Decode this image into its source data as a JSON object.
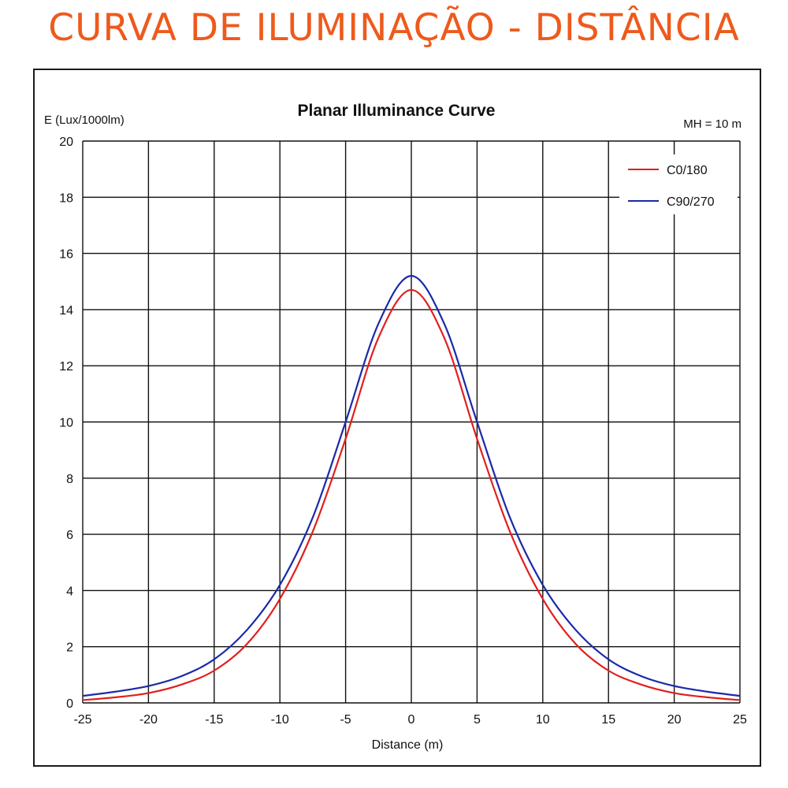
{
  "banner": {
    "title": "CURVA DE ILUMINAÇÃO - DISTÂNCIA",
    "color": "#ee5a1c"
  },
  "chart_data": {
    "type": "line",
    "title": "Planar Illuminance Curve",
    "ylabel": "E (Lux/1000lm)",
    "xlabel": "Distance (m)",
    "annotation": "MH = 10 m",
    "xlim": [
      -25,
      25
    ],
    "ylim": [
      0,
      20
    ],
    "x_ticks": [
      -25,
      -20,
      -15,
      -10,
      -5,
      0,
      5,
      10,
      15,
      20,
      25
    ],
    "y_ticks": [
      0,
      2,
      4,
      6,
      8,
      10,
      12,
      14,
      16,
      18,
      20
    ],
    "grid": true,
    "legend_position": "top-right",
    "x": [
      -25,
      -22.5,
      -20,
      -17.5,
      -15,
      -12.5,
      -10,
      -7.5,
      -5,
      -2.5,
      0,
      2.5,
      5,
      7.5,
      10,
      12.5,
      15,
      17.5,
      20,
      22.5,
      25
    ],
    "series": [
      {
        "name": "C0/180",
        "color": "#e0201c",
        "values": [
          0.1,
          0.2,
          0.35,
          0.65,
          1.15,
          2.1,
          3.7,
          6.1,
          9.4,
          13.0,
          14.7,
          13.0,
          9.4,
          6.1,
          3.7,
          2.1,
          1.15,
          0.65,
          0.35,
          0.2,
          0.1
        ]
      },
      {
        "name": "C90/270",
        "color": "#1a2aa8",
        "values": [
          0.25,
          0.4,
          0.6,
          0.95,
          1.55,
          2.6,
          4.2,
          6.6,
          10.0,
          13.5,
          15.2,
          13.5,
          10.0,
          6.6,
          4.2,
          2.6,
          1.55,
          0.95,
          0.6,
          0.4,
          0.25
        ]
      }
    ]
  }
}
